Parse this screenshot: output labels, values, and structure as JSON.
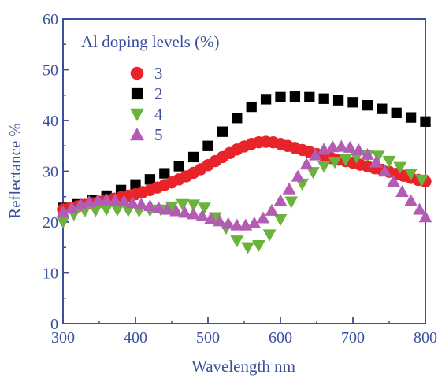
{
  "chart_data": {
    "type": "scatter",
    "title": "",
    "xlabel": "Wavelength nm",
    "ylabel": "Reflectance %",
    "xlim": [
      300,
      800
    ],
    "ylim": [
      0,
      60
    ],
    "xticks": [
      "300",
      "400",
      "500",
      "600",
      "700",
      "800"
    ],
    "yticks": [
      "0",
      "10",
      "20",
      "30",
      "40",
      "50",
      "60"
    ],
    "grid": false,
    "legend_title": "Al doping levels (%)",
    "legend_position": "top-left",
    "colors": {
      "axis": "#3a4fa0",
      "s3": "#e8232a",
      "s2": "#000000",
      "s4": "#6ab43e",
      "s5": "#b25cb4"
    },
    "series": [
      {
        "name": "3",
        "marker": "circle",
        "color": "#e8232a",
        "x": [
          300,
          310,
          320,
          330,
          340,
          350,
          360,
          370,
          380,
          390,
          400,
          410,
          420,
          430,
          440,
          450,
          460,
          470,
          480,
          490,
          500,
          510,
          520,
          530,
          540,
          550,
          560,
          570,
          580,
          590,
          600,
          610,
          620,
          630,
          640,
          650,
          660,
          670,
          680,
          690,
          700,
          710,
          720,
          730,
          740,
          750,
          760,
          770,
          780,
          790,
          800
        ],
        "y": [
          22.5,
          22.8,
          23.1,
          23.4,
          23.7,
          24.0,
          24.3,
          24.6,
          24.9,
          25.2,
          25.5,
          25.9,
          26.3,
          26.8,
          27.3,
          27.8,
          28.4,
          29.0,
          29.7,
          30.4,
          31.2,
          32.0,
          32.8,
          33.6,
          34.3,
          34.9,
          35.4,
          35.7,
          35.8,
          35.7,
          35.4,
          35.0,
          34.6,
          34.2,
          33.8,
          33.4,
          33.0,
          32.6,
          32.3,
          32.0,
          31.7,
          31.3,
          31.0,
          30.6,
          30.3,
          29.9,
          29.5,
          29.1,
          28.7,
          28.3,
          28.0
        ]
      },
      {
        "name": "2",
        "marker": "square",
        "color": "#000000",
        "x": [
          300,
          320,
          340,
          360,
          380,
          400,
          420,
          440,
          460,
          480,
          500,
          520,
          540,
          560,
          580,
          600,
          620,
          640,
          660,
          680,
          700,
          720,
          740,
          760,
          780,
          800
        ],
        "y": [
          22.8,
          23.5,
          24.3,
          25.2,
          26.3,
          27.4,
          28.4,
          29.6,
          31.0,
          32.8,
          35.0,
          37.8,
          40.5,
          42.7,
          44.2,
          44.6,
          44.7,
          44.6,
          44.3,
          44.0,
          43.6,
          43.0,
          42.3,
          41.5,
          40.6,
          39.8
        ]
      },
      {
        "name": "4",
        "marker": "triangle-down",
        "color": "#6ab43e",
        "x": [
          300,
          315,
          330,
          345,
          360,
          375,
          390,
          405,
          420,
          435,
          450,
          465,
          480,
          495,
          510,
          525,
          540,
          555,
          570,
          585,
          600,
          615,
          630,
          645,
          660,
          675,
          690,
          705,
          720,
          735,
          750,
          765,
          780,
          795
        ],
        "y": [
          20.0,
          21.5,
          22.2,
          22.3,
          22.5,
          22.4,
          22.3,
          22.2,
          22.3,
          22.4,
          23.0,
          23.5,
          23.4,
          22.8,
          20.9,
          18.8,
          16.3,
          15.0,
          15.4,
          17.5,
          20.5,
          24.0,
          27.5,
          29.8,
          31.0,
          31.8,
          32.3,
          32.8,
          33.1,
          33.0,
          32.0,
          30.8,
          29.5,
          28.3
        ]
      },
      {
        "name": "5",
        "marker": "triangle-up",
        "color": "#b25cb4",
        "x": [
          300,
          312,
          324,
          336,
          348,
          360,
          372,
          384,
          396,
          408,
          420,
          432,
          444,
          456,
          468,
          480,
          492,
          504,
          516,
          528,
          540,
          552,
          564,
          576,
          588,
          600,
          612,
          624,
          636,
          648,
          660,
          672,
          684,
          696,
          708,
          720,
          732,
          744,
          756,
          768,
          780,
          792,
          800
        ],
        "y": [
          22.0,
          22.8,
          23.5,
          24.0,
          24.3,
          24.4,
          24.3,
          24.1,
          23.8,
          23.5,
          23.2,
          22.8,
          22.5,
          22.2,
          21.9,
          21.6,
          21.2,
          20.7,
          20.2,
          19.7,
          19.4,
          19.4,
          19.8,
          20.8,
          22.3,
          24.2,
          26.5,
          29.0,
          31.4,
          33.2,
          34.3,
          34.8,
          34.9,
          34.7,
          34.2,
          33.3,
          31.8,
          30.0,
          28.0,
          26.0,
          24.2,
          22.5,
          21.0
        ]
      }
    ]
  }
}
